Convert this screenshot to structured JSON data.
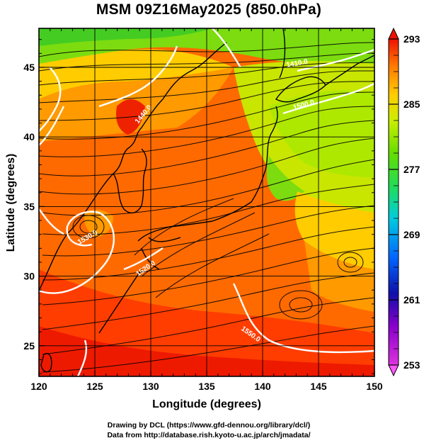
{
  "title": "MSM 09Z16May2025 (850.0hPa)",
  "map": {
    "projection": "lat-lon",
    "lon_range": [
      120,
      150
    ],
    "lat_range": [
      22.8,
      47.8
    ],
    "x_axis": {
      "label": "Longitude (degrees)",
      "ticks": [
        120,
        125,
        130,
        135,
        140,
        145,
        150
      ]
    },
    "y_axis": {
      "label": "Latitude  (degrees)",
      "ticks": [
        25,
        30,
        35,
        40,
        45
      ]
    },
    "field": "temperature (K) shaded, streamlines (wind), white contours (geopotential height)",
    "contour_labels": [
      "1530.0",
      "1440.0",
      "1520.0",
      "1500.0",
      "1550.0",
      "1410.0"
    ]
  },
  "colorbar": {
    "min": 253,
    "max": 293,
    "tick_labels": [
      "293",
      "285",
      "277",
      "269",
      "261",
      "253"
    ],
    "colors": [
      "#e8e8e8",
      "#ff55ff",
      "#aa00dd",
      "#0000cc",
      "#0077ff",
      "#00ccdd",
      "#22dd88",
      "#44dd22",
      "#aaee00",
      "#ffdd00",
      "#ff9900",
      "#ff4400",
      "#ee0000"
    ],
    "extend": "both"
  },
  "credits": {
    "line1": "Drawing by DCL (https://www.gfd-dennou.org/library/dcl/)",
    "line2": "Data from http://database.rish.kyoto-u.ac.jp/arch/jmadata/"
  }
}
